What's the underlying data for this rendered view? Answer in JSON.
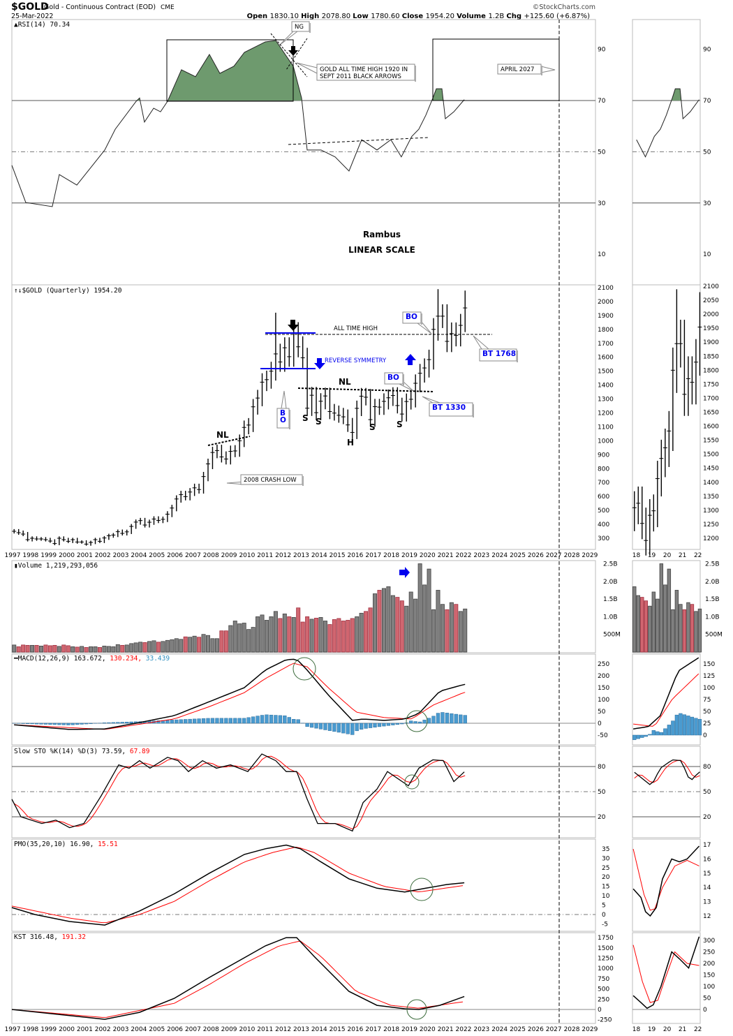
{
  "header": {
    "symbol": "$GOLD",
    "name": "Gold - Continuous Contract (EOD)",
    "exchange": "CME",
    "date": "25-Mar-2022",
    "credit": "©StockCharts.com",
    "ohlc": [
      [
        "Open",
        "1830.10"
      ],
      [
        "High",
        "2078.80"
      ],
      [
        "Low",
        "1780.60"
      ],
      [
        "Close",
        "1954.20"
      ],
      [
        "Volume",
        "1.2B"
      ],
      [
        "Chg",
        "+125.60 (+6.87%)"
      ]
    ]
  },
  "colors": {
    "up": "#808080",
    "down": "#d06670",
    "rsi_fill": "#6e9a6e",
    "signal": "#ff0000",
    "hist": "#4a9bd0",
    "annot_blue": "#0000ee"
  },
  "chart_data": [
    {
      "type": "line",
      "title": "RSI(14) 70.34",
      "ylim": [
        0,
        100
      ],
      "ticks": [
        90,
        70,
        50,
        30,
        10
      ],
      "points": [
        [
          1997.0,
          44.7
        ],
        [
          1997.77,
          30.2
        ],
        [
          1999.24,
          28.6
        ],
        [
          1999.63,
          41.1
        ],
        [
          2000.6,
          37
        ],
        [
          2001.37,
          43.8
        ],
        [
          2002.15,
          50.7
        ],
        [
          2002.73,
          58.8
        ],
        [
          2003.89,
          69.7
        ],
        [
          2004.08,
          71
        ],
        [
          2004.35,
          61.6
        ],
        [
          2004.86,
          67
        ],
        [
          2005.24,
          65.6
        ],
        [
          2005.63,
          69.7
        ],
        [
          2006.4,
          82
        ],
        [
          2007.18,
          79.3
        ],
        [
          2007.95,
          88
        ],
        [
          2008.53,
          80.6
        ],
        [
          2009.31,
          83.4
        ],
        [
          2009.89,
          88.8
        ],
        [
          2011.05,
          92.9
        ],
        [
          2011.63,
          93.4
        ],
        [
          2012.21,
          87.4
        ],
        [
          2012.6,
          83.4
        ],
        [
          2013.06,
          71
        ],
        [
          2013.37,
          50.7
        ],
        [
          2014.14,
          50.7
        ],
        [
          2014.92,
          48
        ],
        [
          2015.69,
          42.5
        ],
        [
          2016.39,
          54.7
        ],
        [
          2017.24,
          50.7
        ],
        [
          2018.01,
          54.7
        ],
        [
          2018.59,
          48
        ],
        [
          2019.17,
          56
        ],
        [
          2019.56,
          58.8
        ],
        [
          2019.95,
          64.3
        ],
        [
          2020.34,
          71
        ],
        [
          2020.53,
          74.6
        ],
        [
          2020.84,
          74.6
        ],
        [
          2021.03,
          62.9
        ],
        [
          2021.5,
          65.6
        ],
        [
          2022.08,
          70.34
        ]
      ]
    },
    {
      "type": "ohlc",
      "title": "$GOLD (Quarterly) 1954.20",
      "start": 1997,
      "period": "quarter",
      "ylim": [
        300,
        2100
      ],
      "ticks": [
        2100,
        2000,
        1900,
        1800,
        1700,
        1600,
        1500,
        1400,
        1300,
        1200,
        1100,
        1000,
        900,
        800,
        700,
        600,
        500,
        400,
        300
      ],
      "mini_ticks": [
        2100,
        2050,
        2000,
        1950,
        1900,
        1850,
        1800,
        1750,
        1700,
        1650,
        1600,
        1550,
        1500,
        1450,
        1400,
        1350,
        1300,
        1250,
        1200
      ],
      "close": [
        350,
        340,
        330,
        290,
        300,
        295,
        295,
        290,
        280,
        262,
        300,
        290,
        278,
        290,
        273,
        273,
        258,
        270,
        290,
        278,
        302,
        318,
        323,
        347,
        335,
        346,
        385,
        416,
        427,
        395,
        415,
        438,
        428,
        436,
        473,
        517,
        582,
        613,
        599,
        632,
        662,
        650,
        743,
        834,
        916,
        930,
        884,
        869,
        924,
        927,
        1000,
        1096,
        1113,
        1244,
        1307,
        1421,
        1439,
        1500,
        1624,
        1566,
        1668,
        1604,
        1772,
        1675,
        1596,
        1234,
        1327,
        1202,
        1284,
        1322,
        1210,
        1199,
        1183,
        1172,
        1114,
        1060,
        1233,
        1320,
        1313,
        1152,
        1245,
        1242,
        1283,
        1309,
        1325,
        1253,
        1192,
        1282,
        1298,
        1413,
        1485,
        1523,
        1583,
        1800,
        1895,
        1895,
        1714,
        1770,
        1757,
        1829,
        1954.2
      ]
    },
    {
      "type": "bar",
      "title": "Volume 1,219,293,056",
      "unit": "B",
      "ticks": [
        [
          "2.5B",
          2.5
        ],
        [
          "2.0B",
          2.0
        ],
        [
          "1.5B",
          1.5
        ],
        [
          "1.0B",
          1.0
        ],
        [
          "500M",
          0.5
        ]
      ],
      "values": [
        0.2,
        0.15,
        0.2,
        0.19,
        0.19,
        0.19,
        0.17,
        0.2,
        0.18,
        0.19,
        0.16,
        0.2,
        0.18,
        0.15,
        0.14,
        0.16,
        0.13,
        0.15,
        0.15,
        0.13,
        0.17,
        0.16,
        0.15,
        0.21,
        0.19,
        0.2,
        0.24,
        0.26,
        0.28,
        0.27,
        0.3,
        0.32,
        0.28,
        0.3,
        0.33,
        0.35,
        0.38,
        0.36,
        0.43,
        0.42,
        0.45,
        0.42,
        0.5,
        0.47,
        0.38,
        0.38,
        0.6,
        0.6,
        0.75,
        0.88,
        0.8,
        0.82,
        0.64,
        0.7,
        1.0,
        1.05,
        0.9,
        1.0,
        1.15,
        0.95,
        1.08,
        1.0,
        0.98,
        1.25,
        0.85,
        1.0,
        0.93,
        0.96,
        0.98,
        0.88,
        0.78,
        0.92,
        0.95,
        0.88,
        0.9,
        0.95,
        1.0,
        1.1,
        1.15,
        1.25,
        1.65,
        1.75,
        1.8,
        1.85,
        1.6,
        1.55,
        1.45,
        1.3,
        1.7,
        1.5,
        2.5,
        1.9,
        2.35,
        1.2,
        1.75,
        1.35,
        1.2,
        1.4,
        1.35,
        1.15,
        1.22
      ]
    },
    {
      "type": "line",
      "title": "MACD(12,26,9) 163.672, ",
      "title2": "130.234, ",
      "title3": "33.439",
      "ylim": [
        -60,
        270
      ],
      "ticks": [
        250,
        200,
        150,
        100,
        50,
        0,
        -50
      ],
      "mini_ticks": [
        150,
        125,
        100,
        75,
        50,
        25,
        0
      ],
      "macd": [
        [
          1997.0,
          -6
        ],
        [
          2000.2,
          -26
        ],
        [
          2002.15,
          -24
        ],
        [
          2004.08,
          3
        ],
        [
          2006.0,
          32
        ],
        [
          2007.95,
          91
        ],
        [
          2009.89,
          150
        ],
        [
          2011.05,
          224
        ],
        [
          2012.21,
          268
        ],
        [
          2012.79,
          270
        ],
        [
          2013.37,
          224
        ],
        [
          2014.53,
          120
        ],
        [
          2015.88,
          12
        ],
        [
          2016.47,
          18
        ],
        [
          2017.63,
          12
        ],
        [
          2018.78,
          18
        ],
        [
          2019.56,
          41
        ],
        [
          2020.72,
          135
        ],
        [
          2022.08,
          163.7
        ]
      ],
      "signal": [
        [
          1997.0,
          -6
        ],
        [
          2002.15,
          -26
        ],
        [
          2006.0,
          18
        ],
        [
          2007.95,
          70
        ],
        [
          2009.89,
          129
        ],
        [
          2011.05,
          188
        ],
        [
          2012.6,
          253
        ],
        [
          2013.37,
          238
        ],
        [
          2014.53,
          150
        ],
        [
          2016.08,
          47
        ],
        [
          2017.63,
          24
        ],
        [
          2019.17,
          18
        ],
        [
          2020.34,
          76
        ],
        [
          2022.08,
          130.2
        ]
      ]
    },
    {
      "type": "line",
      "title": "Slow STO %K(14) %D(3) 73.59, ",
      "title2": "67.89",
      "ylim": [
        0,
        100
      ],
      "ticks": [
        80,
        50,
        20
      ],
      "k": [
        [
          1997.0,
          41
        ],
        [
          1997.5,
          20
        ],
        [
          1998.66,
          12
        ],
        [
          1999.44,
          16
        ],
        [
          2000.2,
          7
        ],
        [
          2000.99,
          12
        ],
        [
          2001.95,
          45
        ],
        [
          2002.92,
          82
        ],
        [
          2003.5,
          78
        ],
        [
          2004.08,
          87
        ],
        [
          2004.66,
          78
        ],
        [
          2005.63,
          91
        ],
        [
          2006.21,
          87
        ],
        [
          2006.79,
          74
        ],
        [
          2007.57,
          87
        ],
        [
          2008.34,
          78
        ],
        [
          2009.12,
          82
        ],
        [
          2010.08,
          74
        ],
        [
          2010.86,
          95
        ],
        [
          2011.63,
          87
        ],
        [
          2012.21,
          74
        ],
        [
          2012.79,
          74
        ],
        [
          2013.37,
          41
        ],
        [
          2013.95,
          12
        ],
        [
          2014.92,
          12
        ],
        [
          2015.88,
          3
        ],
        [
          2016.47,
          37
        ],
        [
          2017.24,
          53
        ],
        [
          2017.82,
          74
        ],
        [
          2018.98,
          57
        ],
        [
          2019.56,
          78
        ],
        [
          2020.34,
          88
        ],
        [
          2020.92,
          87
        ],
        [
          2021.5,
          62
        ],
        [
          2022.08,
          73.59
        ]
      ]
    },
    {
      "type": "line",
      "title": "PMO(35,20,10) 16.90, ",
      "title2": "15.51",
      "ylim": [
        -7,
        38
      ],
      "ticks": [
        35,
        30,
        25,
        20,
        15,
        10,
        5,
        0,
        -5
      ],
      "mini_ticks": [
        17,
        16,
        15,
        14,
        13,
        12
      ],
      "pmo": [
        [
          1997.0,
          3.7
        ],
        [
          1998.28,
          0
        ],
        [
          2000.2,
          -3.7
        ],
        [
          2002.15,
          -5.6
        ],
        [
          2004.08,
          1.9
        ],
        [
          2006.0,
          11
        ],
        [
          2007.95,
          22
        ],
        [
          2009.89,
          32
        ],
        [
          2011.05,
          35
        ],
        [
          2012.21,
          37
        ],
        [
          2012.99,
          35
        ],
        [
          2014.14,
          28
        ],
        [
          2015.69,
          19
        ],
        [
          2017.24,
          14
        ],
        [
          2018.78,
          12
        ],
        [
          2019.95,
          14
        ],
        [
          2021.11,
          16
        ],
        [
          2022.08,
          16.9
        ]
      ],
      "signal": [
        [
          1997.0,
          4.5
        ],
        [
          2000.2,
          -1.9
        ],
        [
          2002.15,
          -4.5
        ],
        [
          2004.08,
          0
        ],
        [
          2006.0,
          7
        ],
        [
          2007.95,
          18
        ],
        [
          2009.89,
          28
        ],
        [
          2011.44,
          33
        ],
        [
          2012.79,
          36
        ],
        [
          2013.76,
          33
        ],
        [
          2015.69,
          22
        ],
        [
          2017.63,
          15
        ],
        [
          2019.56,
          12
        ],
        [
          2022.08,
          15.51
        ]
      ]
    },
    {
      "type": "line",
      "title": "KST 316.48, ",
      "title2": "191.32",
      "ylim": [
        -250,
        1800
      ],
      "ticks": [
        1750,
        1500,
        1250,
        1000,
        750,
        500,
        250,
        0,
        -250
      ],
      "mini_ticks": [
        300,
        250,
        200,
        150,
        100,
        50,
        0
      ],
      "kst": [
        [
          1997.0,
          0
        ],
        [
          2000.2,
          -150
        ],
        [
          2002.15,
          -240
        ],
        [
          2004.08,
          -70
        ],
        [
          2006.0,
          270
        ],
        [
          2007.95,
          780
        ],
        [
          2009.89,
          1260
        ],
        [
          2011.05,
          1550
        ],
        [
          2012.21,
          1750
        ],
        [
          2012.79,
          1750
        ],
        [
          2013.76,
          1290
        ],
        [
          2015.69,
          440
        ],
        [
          2017.24,
          100
        ],
        [
          2018.78,
          17
        ],
        [
          2019.56,
          0
        ],
        [
          2020.72,
          100
        ],
        [
          2022.08,
          316.48
        ]
      ],
      "signal": [
        [
          1997.0,
          0
        ],
        [
          2002.15,
          -200
        ],
        [
          2006.0,
          150
        ],
        [
          2007.95,
          610
        ],
        [
          2009.89,
          1120
        ],
        [
          2011.82,
          1550
        ],
        [
          2012.99,
          1670
        ],
        [
          2014.14,
          1290
        ],
        [
          2016.08,
          440
        ],
        [
          2018.01,
          100
        ],
        [
          2019.56,
          30
        ],
        [
          2022.08,
          191.32
        ]
      ]
    }
  ],
  "axis": {
    "years": [
      "1997",
      "1998",
      "1999",
      "2000",
      "2001",
      "2002",
      "2003",
      "2004",
      "2005",
      "2006",
      "2007",
      "2008",
      "2009",
      "2010",
      "2011",
      "2012",
      "2013",
      "2014",
      "2015",
      "2016",
      "2017",
      "2018",
      "2019",
      "2020",
      "2021",
      "2022",
      "2023",
      "2024",
      "2025",
      "2026",
      "2027",
      "2028",
      "2029"
    ],
    "mini_years": [
      "18",
      "19",
      "20",
      "21",
      "22"
    ]
  },
  "annotations": {
    "ng": "NG",
    "ath_note_1": "GOLD ALL TIME HIGH 1920 IN",
    "ath_note_2": "SEPT 2011 BLACK ARROWS",
    "april": "APRIL 2027",
    "author": "Rambus",
    "scale": "LINEAR SCALE",
    "all_time_high": "ALL TIME HIGH",
    "reverse_symmetry": "REVERSE SYMMETRY",
    "nl": "NL",
    "bo": "BO",
    "bo_b": "B",
    "bo_o": "O",
    "bt1768": "BT 1768",
    "bt1330": "BT 1330",
    "crash": "2008 CRASH LOW",
    "s": "S",
    "h": "H"
  }
}
